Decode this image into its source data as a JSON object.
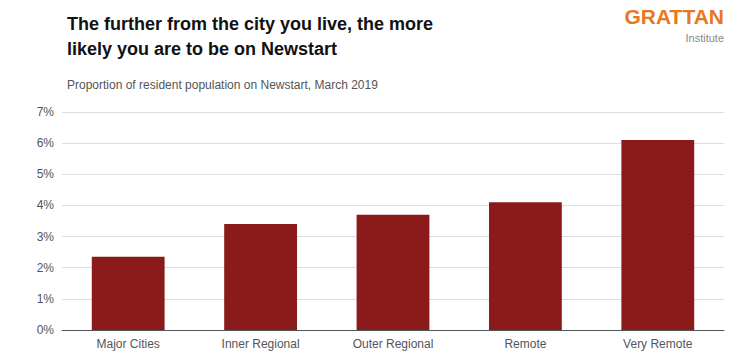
{
  "chart_data": {
    "type": "bar",
    "title": "The further from the city you live, the more\nlikely you are to be on Newstart",
    "subtitle": "Proportion of resident population on Newstart, March 2019",
    "categories": [
      "Major Cities",
      "Inner Regional",
      "Outer Regional",
      "Remote",
      "Very Remote"
    ],
    "values": [
      2.35,
      3.4,
      3.7,
      4.1,
      6.1
    ],
    "color": "#8B1A1A",
    "ylim": [
      0,
      7
    ],
    "yticks": [
      {
        "value": 0,
        "label": "0%"
      },
      {
        "value": 1,
        "label": "1%"
      },
      {
        "value": 2,
        "label": "2%"
      },
      {
        "value": 3,
        "label": "3%"
      },
      {
        "value": 4,
        "label": "4%"
      },
      {
        "value": 5,
        "label": "5%"
      },
      {
        "value": 6,
        "label": "6%"
      },
      {
        "value": 7,
        "label": "7%"
      }
    ],
    "grid": true,
    "annotations": [
      {
        "text": "GRATTAN",
        "color": "#E87722"
      },
      {
        "text": "Institute",
        "color": "#888888"
      }
    ]
  }
}
